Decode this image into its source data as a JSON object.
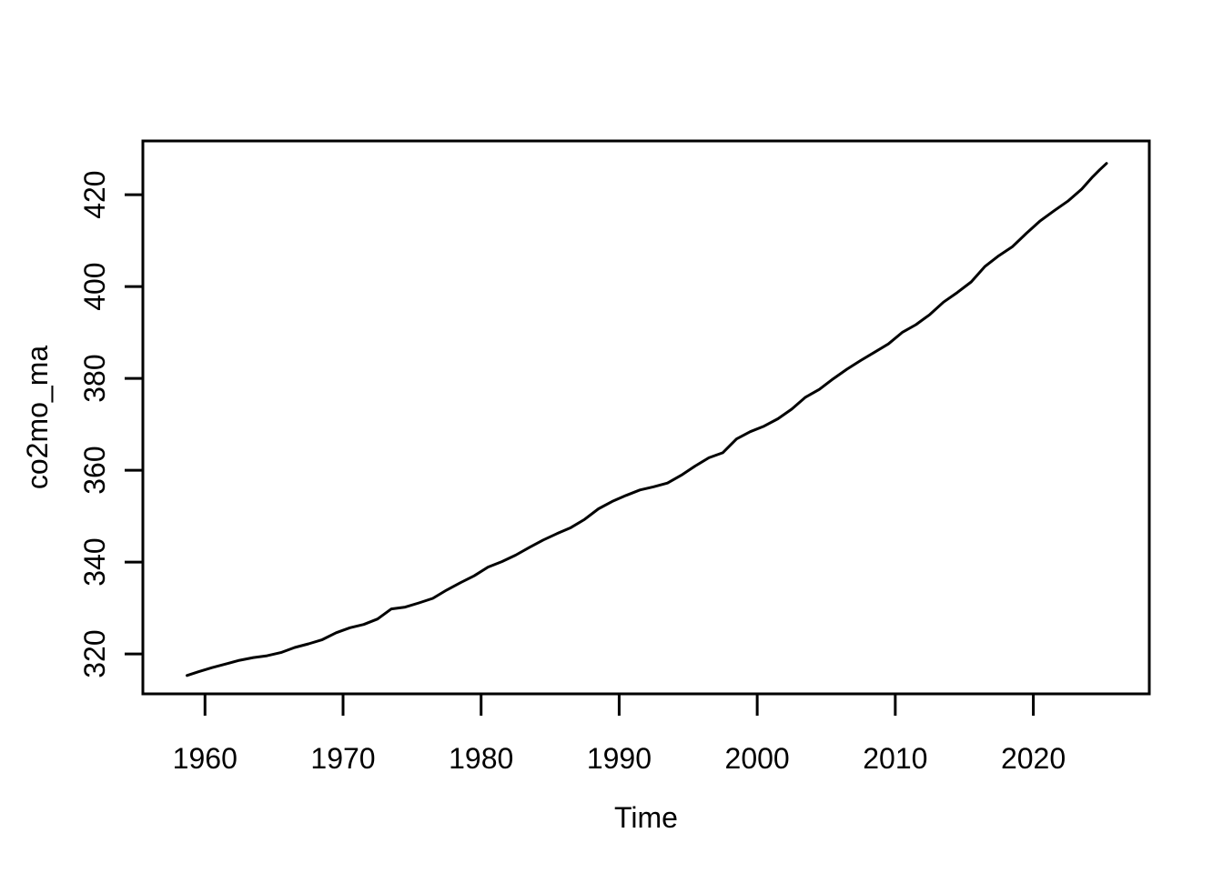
{
  "figure": {
    "background": "#ffffff",
    "foreground": "#000000"
  },
  "chart_data": {
    "type": "line",
    "title": "",
    "xlabel": "Time",
    "ylabel": "co2mo_ma",
    "x_ticks": [
      1960,
      1970,
      1980,
      1990,
      2000,
      2010,
      2020
    ],
    "y_ticks": [
      320,
      340,
      360,
      380,
      400,
      420
    ],
    "xlim": [
      1955.5,
      2028.4
    ],
    "ylim": [
      311.3,
      431.7
    ],
    "grid": false,
    "legend": "none",
    "line_color": "#000000",
    "axis_color": "#000000",
    "series": [
      {
        "name": "co2mo_ma",
        "x": [
          1958.7,
          1959.5,
          1960.5,
          1961.5,
          1962.5,
          1963.5,
          1964.5,
          1965.5,
          1966.5,
          1967.5,
          1968.5,
          1969.5,
          1970.5,
          1971.5,
          1972.5,
          1973.5,
          1974.5,
          1975.5,
          1976.5,
          1977.5,
          1978.5,
          1979.5,
          1980.5,
          1981.5,
          1982.5,
          1983.5,
          1984.5,
          1985.5,
          1986.5,
          1987.5,
          1988.5,
          1989.5,
          1990.5,
          1991.5,
          1992.5,
          1993.5,
          1994.5,
          1995.5,
          1996.5,
          1997.5,
          1998.5,
          1999.5,
          2000.5,
          2001.5,
          2002.5,
          2003.5,
          2004.5,
          2005.5,
          2006.5,
          2007.5,
          2008.5,
          2009.5,
          2010.5,
          2011.5,
          2012.5,
          2013.5,
          2014.5,
          2015.5,
          2016.5,
          2017.5,
          2018.5,
          2019.5,
          2020.5,
          2021.5,
          2022.5,
          2023.5,
          2024.3,
          2024.8,
          2025.3
        ],
        "y": [
          315.3,
          316.1,
          317.0,
          317.8,
          318.6,
          319.2,
          319.6,
          320.3,
          321.4,
          322.2,
          323.1,
          324.6,
          325.7,
          326.4,
          327.6,
          329.8,
          330.2,
          331.1,
          332.1,
          333.9,
          335.5,
          337.0,
          338.9,
          340.1,
          341.5,
          343.2,
          344.8,
          346.2,
          347.5,
          349.3,
          351.6,
          353.2,
          354.5,
          355.7,
          356.4,
          357.2,
          358.9,
          360.9,
          362.7,
          363.8,
          366.8,
          368.4,
          369.6,
          371.2,
          373.3,
          375.9,
          377.6,
          379.9,
          382.0,
          383.9,
          385.7,
          387.5,
          390.0,
          391.7,
          393.9,
          396.6,
          398.7,
          401.0,
          404.4,
          406.7,
          408.7,
          411.6,
          414.3,
          416.5,
          418.6,
          421.2,
          423.9,
          425.4,
          426.8
        ]
      }
    ]
  }
}
